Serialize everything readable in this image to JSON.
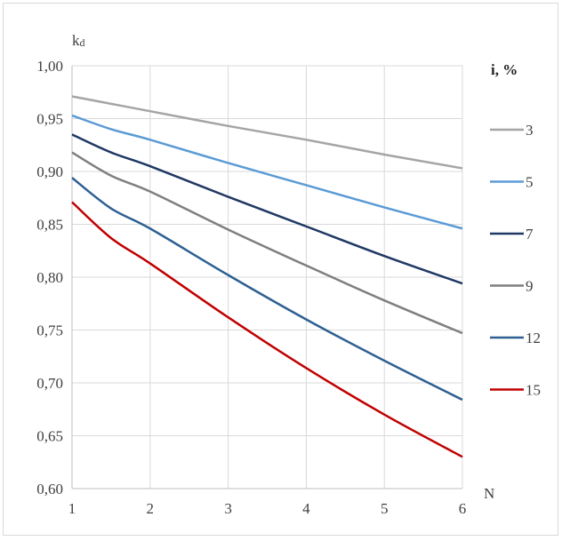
{
  "chart_data": {
    "type": "line",
    "title": "",
    "xlabel": "N",
    "ylabel": "kd",
    "ylabel_main": "k",
    "ylabel_sub": "d",
    "legend_title": "i, %",
    "legend_position": "right",
    "grid": true,
    "xlim": [
      1,
      6
    ],
    "ylim": [
      0.6,
      1.0
    ],
    "x_ticks": [
      1,
      2,
      3,
      4,
      5,
      6
    ],
    "x_tick_labels": [
      "1",
      "2",
      "3",
      "4",
      "5",
      "6"
    ],
    "y_ticks": [
      0.6,
      0.65,
      0.7,
      0.75,
      0.8,
      0.85,
      0.9,
      0.95,
      1.0
    ],
    "y_tick_labels": [
      "0,60",
      "0,65",
      "0,70",
      "0,75",
      "0,80",
      "0,85",
      "0,90",
      "0,95",
      "1,00"
    ],
    "x": [
      1,
      1.5,
      2,
      3,
      4,
      5,
      6
    ],
    "series": [
      {
        "name": "3",
        "color": "#a5a5a5",
        "values": [
          0.971,
          0.964,
          0.957,
          0.943,
          0.93,
          0.916,
          0.903
        ]
      },
      {
        "name": "5",
        "color": "#5b9bd5",
        "values": [
          0.953,
          0.94,
          0.93,
          0.908,
          0.887,
          0.866,
          0.846
        ]
      },
      {
        "name": "7",
        "color": "#203864",
        "values": [
          0.935,
          0.918,
          0.905,
          0.876,
          0.848,
          0.82,
          0.794
        ]
      },
      {
        "name": "9",
        "color": "#7f7f7f",
        "values": [
          0.918,
          0.896,
          0.881,
          0.845,
          0.811,
          0.778,
          0.747
        ]
      },
      {
        "name": "12",
        "color": "#2e6092",
        "values": [
          0.894,
          0.865,
          0.846,
          0.802,
          0.76,
          0.721,
          0.684
        ]
      },
      {
        "name": "15",
        "color": "#c00000",
        "values": [
          0.871,
          0.837,
          0.813,
          0.762,
          0.714,
          0.67,
          0.63
        ]
      }
    ]
  }
}
